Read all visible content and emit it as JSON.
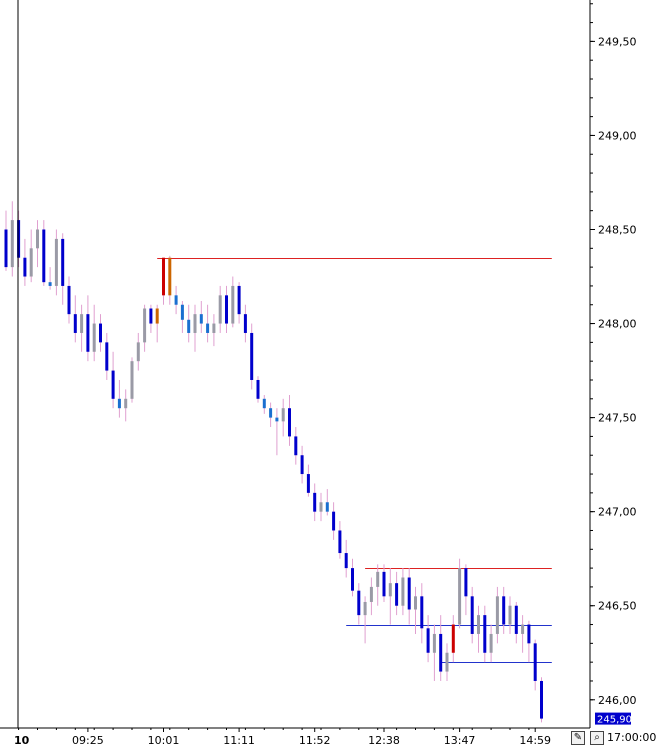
{
  "chart_data": {
    "type": "bar",
    "style": "ohlc-intraday",
    "date_marker": "10",
    "x_tick_labels": [
      "09:25",
      "10:01",
      "11:11",
      "11:52",
      "12:38",
      "13:47",
      "14:59"
    ],
    "x_tick_bar_index": [
      13,
      25,
      37,
      49,
      60,
      72,
      84
    ],
    "axis_corner_time": "17:00:00",
    "y_tick_labels": [
      "249,50",
      "249,00",
      "248,50",
      "248,00",
      "247,50",
      "247,00",
      "246,50",
      "246,00"
    ],
    "y_ticks": [
      249.5,
      249.0,
      248.5,
      248.0,
      247.5,
      247.0,
      246.5,
      246.0
    ],
    "ylim": [
      245.85,
      249.72
    ],
    "last_price": 245.9,
    "last_price_label": "245,90",
    "colors": {
      "up": "#9a9aa6",
      "down": "#1a6fd0",
      "strong_down": "#0000cc",
      "strong_up": "#cc0000",
      "orange": "#cc6600",
      "wick": "#e0a0d0",
      "resistance_line": "#dd2222",
      "support_line": "#2233cc",
      "last_price_bg": "#0000cc"
    },
    "levels": [
      {
        "price": 248.35,
        "from_bar": 24,
        "to_bar": 86,
        "color": "resistance"
      },
      {
        "price": 246.7,
        "from_bar": 57,
        "to_bar": 86,
        "color": "resistance"
      },
      {
        "price": 246.4,
        "from_bar": 54,
        "to_bar": 86,
        "color": "support"
      },
      {
        "price": 246.2,
        "from_bar": 69,
        "to_bar": 86,
        "color": "support"
      }
    ],
    "bars": [
      [
        248.5,
        248.6,
        248.28,
        248.3
      ],
      [
        248.3,
        248.65,
        248.25,
        248.55
      ],
      [
        248.55,
        248.6,
        248.3,
        248.35
      ],
      [
        248.35,
        248.45,
        248.2,
        248.25
      ],
      [
        248.25,
        248.5,
        248.22,
        248.4
      ],
      [
        248.4,
        248.55,
        248.3,
        248.5
      ],
      [
        248.5,
        248.55,
        248.2,
        248.22
      ],
      [
        248.22,
        248.3,
        248.18,
        248.2
      ],
      [
        248.2,
        248.5,
        248.15,
        248.45
      ],
      [
        248.45,
        248.48,
        248.1,
        248.2
      ],
      [
        248.2,
        248.25,
        248.0,
        248.05
      ],
      [
        248.05,
        248.15,
        247.9,
        247.95
      ],
      [
        247.95,
        248.1,
        247.85,
        248.05
      ],
      [
        248.05,
        248.15,
        247.8,
        247.85
      ],
      [
        247.85,
        248.1,
        247.8,
        248.0
      ],
      [
        248.0,
        248.05,
        247.85,
        247.9
      ],
      [
        247.9,
        247.95,
        247.7,
        247.75
      ],
      [
        247.75,
        247.85,
        247.55,
        247.6
      ],
      [
        247.6,
        247.7,
        247.5,
        247.55
      ],
      [
        247.55,
        247.65,
        247.48,
        247.6
      ],
      [
        247.6,
        247.82,
        247.58,
        247.8
      ],
      [
        247.8,
        247.95,
        247.75,
        247.9
      ],
      [
        247.9,
        248.1,
        247.85,
        248.08
      ],
      [
        248.08,
        248.1,
        247.95,
        248.0
      ],
      [
        248.0,
        248.1,
        247.9,
        248.08
      ],
      [
        248.15,
        248.35,
        248.1,
        248.35
      ],
      [
        248.35,
        248.36,
        248.1,
        248.15
      ],
      [
        248.15,
        248.2,
        248.05,
        248.1
      ],
      [
        248.1,
        248.12,
        247.95,
        248.02
      ],
      [
        248.02,
        248.1,
        247.9,
        247.95
      ],
      [
        247.95,
        248.1,
        247.85,
        248.05
      ],
      [
        248.05,
        248.12,
        247.95,
        248.0
      ],
      [
        248.0,
        248.1,
        247.9,
        247.95
      ],
      [
        247.95,
        248.05,
        247.88,
        248.0
      ],
      [
        248.0,
        248.2,
        247.95,
        248.15
      ],
      [
        248.15,
        248.2,
        247.95,
        248.0
      ],
      [
        248.0,
        248.25,
        247.98,
        248.2
      ],
      [
        248.2,
        248.22,
        248.0,
        248.05
      ],
      [
        248.05,
        248.1,
        247.9,
        247.95
      ],
      [
        247.95,
        248.0,
        247.65,
        247.7
      ],
      [
        247.7,
        247.72,
        247.58,
        247.6
      ],
      [
        247.6,
        247.62,
        247.52,
        247.55
      ],
      [
        247.55,
        247.58,
        247.45,
        247.5
      ],
      [
        247.5,
        247.55,
        247.3,
        247.48
      ],
      [
        247.48,
        247.6,
        247.4,
        247.55
      ],
      [
        247.55,
        247.62,
        247.35,
        247.4
      ],
      [
        247.4,
        247.45,
        247.25,
        247.3
      ],
      [
        247.3,
        247.35,
        247.15,
        247.2
      ],
      [
        247.2,
        247.25,
        247.08,
        247.1
      ],
      [
        247.1,
        247.15,
        246.95,
        247.0
      ],
      [
        247.0,
        247.1,
        246.95,
        247.05
      ],
      [
        247.05,
        247.12,
        246.98,
        247.0
      ],
      [
        247.0,
        247.05,
        246.85,
        246.9
      ],
      [
        246.9,
        246.95,
        246.75,
        246.78
      ],
      [
        246.78,
        246.85,
        246.65,
        246.7
      ],
      [
        246.7,
        246.75,
        246.55,
        246.58
      ],
      [
        246.58,
        246.62,
        246.4,
        246.45
      ],
      [
        246.45,
        246.55,
        246.3,
        246.52
      ],
      [
        246.52,
        246.65,
        246.45,
        246.6
      ],
      [
        246.6,
        246.72,
        246.5,
        246.68
      ],
      [
        246.68,
        246.72,
        246.52,
        246.55
      ],
      [
        246.55,
        246.7,
        246.4,
        246.62
      ],
      [
        246.62,
        246.68,
        246.45,
        246.5
      ],
      [
        246.5,
        246.7,
        246.45,
        246.65
      ],
      [
        246.65,
        246.7,
        246.4,
        246.48
      ],
      [
        246.48,
        246.6,
        246.35,
        246.55
      ],
      [
        246.55,
        246.62,
        246.3,
        246.38
      ],
      [
        246.38,
        246.45,
        246.2,
        246.25
      ],
      [
        246.25,
        246.4,
        246.1,
        246.35
      ],
      [
        246.35,
        246.45,
        246.1,
        246.15
      ],
      [
        246.15,
        246.3,
        246.1,
        246.25
      ],
      [
        246.25,
        246.45,
        246.2,
        246.4
      ],
      [
        246.4,
        246.75,
        246.38,
        246.7
      ],
      [
        246.7,
        246.72,
        246.45,
        246.55
      ],
      [
        246.55,
        246.6,
        246.3,
        246.35
      ],
      [
        246.35,
        246.5,
        246.25,
        246.45
      ],
      [
        246.45,
        246.5,
        246.2,
        246.25
      ],
      [
        246.25,
        246.4,
        246.2,
        246.35
      ],
      [
        246.35,
        246.6,
        246.3,
        246.55
      ],
      [
        246.55,
        246.6,
        246.35,
        246.4
      ],
      [
        246.4,
        246.55,
        246.35,
        246.5
      ],
      [
        246.5,
        246.52,
        246.3,
        246.35
      ],
      [
        246.35,
        246.45,
        246.25,
        246.4
      ],
      [
        246.4,
        246.42,
        246.2,
        246.3
      ],
      [
        246.3,
        246.32,
        246.05,
        246.1
      ],
      [
        246.1,
        246.12,
        245.88,
        245.9
      ]
    ]
  }
}
